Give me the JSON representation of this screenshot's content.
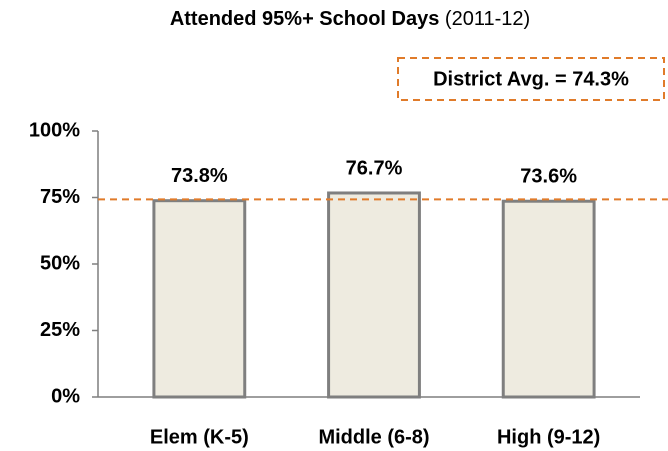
{
  "chart_data": {
    "type": "bar",
    "title": "Attended 95%+ School Days",
    "title_note": "(2011-12)",
    "categories": [
      "Elem (K-5)",
      "Middle (6-8)",
      "High (9-12)"
    ],
    "values": [
      73.8,
      76.7,
      73.6
    ],
    "value_labels": [
      "73.8%",
      "76.7%",
      "73.6%"
    ],
    "color": "#eeebe0",
    "edge_color": "#7f7f7f",
    "ylim": [
      0,
      100
    ],
    "yticks": [
      {
        "value": 0,
        "label": "0%"
      },
      {
        "value": 25,
        "label": "25%"
      },
      {
        "value": 50,
        "label": "50%"
      },
      {
        "value": 75,
        "label": "75%"
      },
      {
        "value": 100,
        "label": "100%"
      }
    ],
    "grid": false,
    "reference_line": {
      "value": 74.3,
      "label": "District Avg. = 74.3%",
      "color": "#e07b2a"
    }
  }
}
